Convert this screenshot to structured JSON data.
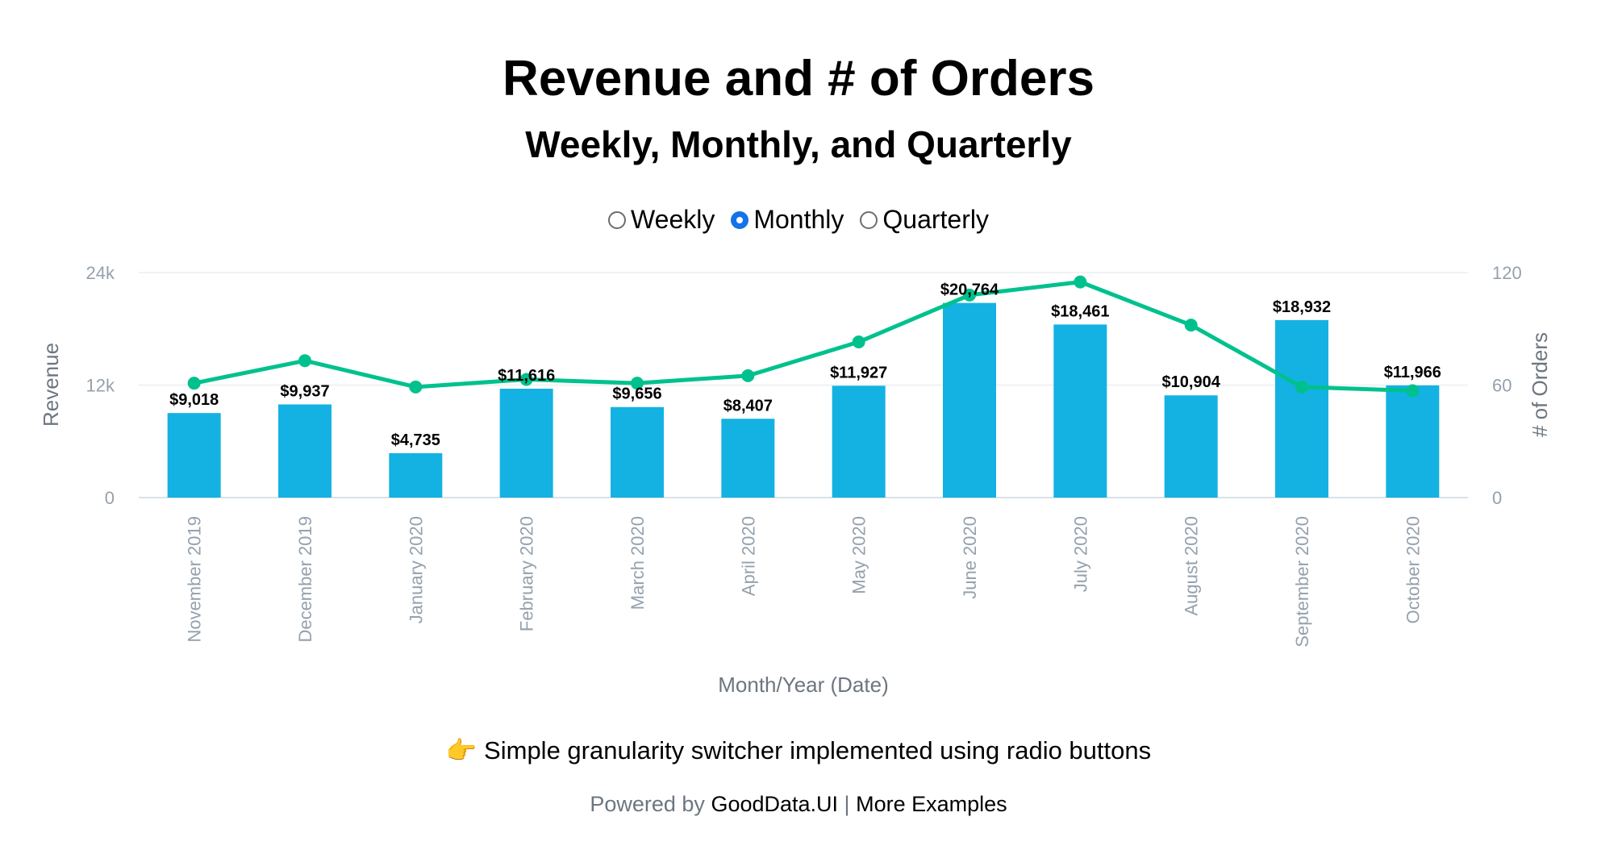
{
  "title": "Revenue and # of Orders",
  "subtitle": "Weekly, Monthly, and Quarterly",
  "granularity": {
    "options": [
      "Weekly",
      "Monthly",
      "Quarterly"
    ],
    "selected": "Monthly"
  },
  "chart_data": {
    "type": "bar",
    "categories": [
      "November 2019",
      "December 2019",
      "January 2020",
      "February 2020",
      "March 2020",
      "April 2020",
      "May 2020",
      "June 2020",
      "July 2020",
      "August 2020",
      "September 2020",
      "October 2020"
    ],
    "series": [
      {
        "name": "Revenue",
        "type": "bar",
        "axis": "left",
        "color": "#14b2e2",
        "values": [
          9018,
          9937,
          4735,
          11616,
          9656,
          8407,
          11927,
          20764,
          18461,
          10904,
          18932,
          11966
        ],
        "labels": [
          "$9,018",
          "$9,937",
          "$4,735",
          "$11,616",
          "$9,656",
          "$8,407",
          "$11,927",
          "$20,764",
          "$18,461",
          "$10,904",
          "$18,932",
          "$11,966"
        ]
      },
      {
        "name": "# of Orders",
        "type": "line",
        "axis": "right",
        "color": "#00c18d",
        "values": [
          61,
          73,
          59,
          63,
          61,
          65,
          83,
          108,
          115,
          92,
          59,
          57
        ]
      }
    ],
    "xlabel": "Month/Year (Date)",
    "ylabel": "Revenue",
    "ylabel_right": "# of Orders",
    "ylim": [
      0,
      24000
    ],
    "ylim_right": [
      0,
      120
    ],
    "yticks": [
      {
        "value": 0,
        "label": "0"
      },
      {
        "value": 12000,
        "label": "12k"
      },
      {
        "value": 24000,
        "label": "24k"
      }
    ],
    "yticks_right": [
      {
        "value": 0,
        "label": "0"
      },
      {
        "value": 60,
        "label": "60"
      },
      {
        "value": 120,
        "label": "120"
      }
    ],
    "grid": true
  },
  "note": "👉 Simple granularity switcher implemented using radio buttons",
  "footer": {
    "prefix": "Powered by",
    "brand_link": "GoodData.UI",
    "separator": "|",
    "examples_link": "More Examples"
  },
  "colors": {
    "bar": "#14b2e2",
    "line": "#00c18d",
    "axis_text": "#94a1ad",
    "grid": "#ebeef1",
    "radio_selected": "#1473e6"
  }
}
